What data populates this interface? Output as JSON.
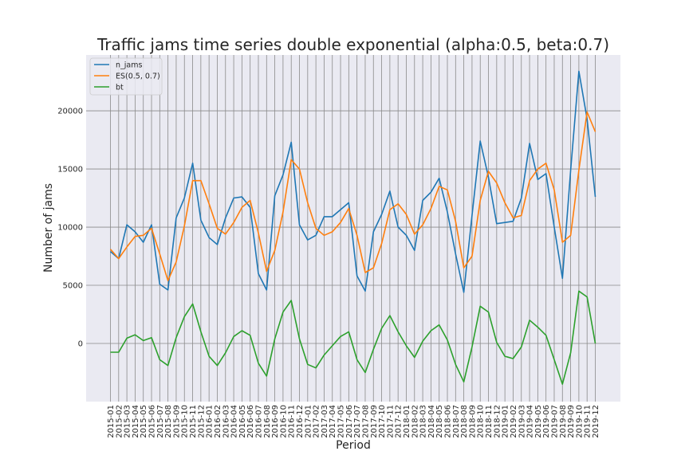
{
  "chart_data": {
    "type": "line",
    "title": "Traffic jams time series double exponential (alpha:0.5, beta:0.7)",
    "xlabel": "Period",
    "ylabel": "Number of jams",
    "ylim": [
      -5000,
      24800
    ],
    "yticks": [
      0,
      5000,
      10000,
      15000,
      20000
    ],
    "grid": true,
    "legend_position": "top-left",
    "x": [
      "2015-01",
      "2015-02",
      "2015-03",
      "2015-04",
      "2015-05",
      "2015-06",
      "2015-07",
      "2015-08",
      "2015-09",
      "2015-10",
      "2015-11",
      "2015-12",
      "2016-01",
      "2016-02",
      "2016-03",
      "2016-04",
      "2016-05",
      "2016-06",
      "2016-07",
      "2016-08",
      "2016-09",
      "2016-10",
      "2016-11",
      "2016-12",
      "2017-01",
      "2017-02",
      "2017-03",
      "2017-04",
      "2017-05",
      "2017-06",
      "2017-07",
      "2017-08",
      "2017-09",
      "2017-10",
      "2017-11",
      "2017-12",
      "2018-01",
      "2018-02",
      "2018-03",
      "2018-04",
      "2018-05",
      "2018-06",
      "2018-07",
      "2018-08",
      "2018-09",
      "2018-10",
      "2018-11",
      "2018-12",
      "2019-01",
      "2019-02",
      "2019-03",
      "2019-04",
      "2019-05",
      "2019-06",
      "2019-07",
      "2019-08",
      "2019-09",
      "2019-10",
      "2019-11",
      "2019-12"
    ],
    "series": [
      {
        "name": "n_jams",
        "color": "#1f77b4",
        "values": [
          7900,
          7300,
          10200,
          9600,
          8700,
          10200,
          5100,
          4600,
          10800,
          12500,
          15500,
          10600,
          9100,
          8500,
          10800,
          12500,
          12600,
          11700,
          6000,
          4600,
          12700,
          14500,
          17300,
          10200,
          8900,
          9300,
          10900,
          10900,
          11500,
          12100,
          5800,
          4500,
          9600,
          11100,
          13100,
          10000,
          9300,
          8000,
          12300,
          13000,
          14200,
          11300,
          7700,
          4400,
          11000,
          17400,
          14300,
          10300,
          10400,
          10500,
          12500,
          17200,
          14100,
          14600,
          10000,
          5600,
          14900,
          23400,
          19300,
          12600
        ]
      },
      {
        "name": "ES(0.5, 0.7)",
        "color": "#ff7f0e",
        "values": [
          8100,
          7300,
          8300,
          9200,
          9300,
          9900,
          7700,
          5400,
          7000,
          10100,
          14000,
          14000,
          12000,
          9900,
          9400,
          10400,
          11700,
          12300,
          9500,
          6200,
          8000,
          11300,
          15800,
          15000,
          12100,
          9900,
          9300,
          9600,
          10400,
          11600,
          9300,
          6100,
          6500,
          8600,
          11500,
          12000,
          11100,
          9400,
          10200,
          11600,
          13500,
          13200,
          10500,
          6500,
          7500,
          12300,
          14800,
          13800,
          12100,
          10800,
          11000,
          14000,
          15000,
          15500,
          13200,
          8700,
          9300,
          14900,
          19900,
          18200
        ]
      },
      {
        "name": "bt",
        "color": "#2ca02c",
        "values": [
          -750,
          -750,
          450,
          750,
          250,
          500,
          -1400,
          -1900,
          500,
          2300,
          3400,
          1000,
          -1100,
          -1900,
          -800,
          600,
          1100,
          700,
          -1700,
          -2800,
          400,
          2700,
          3700,
          400,
          -1800,
          -2100,
          -1000,
          -200,
          600,
          1000,
          -1400,
          -2500,
          -500,
          1300,
          2400,
          1000,
          -200,
          -1200,
          200,
          1100,
          1600,
          300,
          -1800,
          -3300,
          -300,
          3200,
          2700,
          100,
          -1100,
          -1300,
          -300,
          2000,
          1400,
          700,
          -1400,
          -3500,
          -800,
          4500,
          4000,
          0
        ]
      }
    ]
  }
}
